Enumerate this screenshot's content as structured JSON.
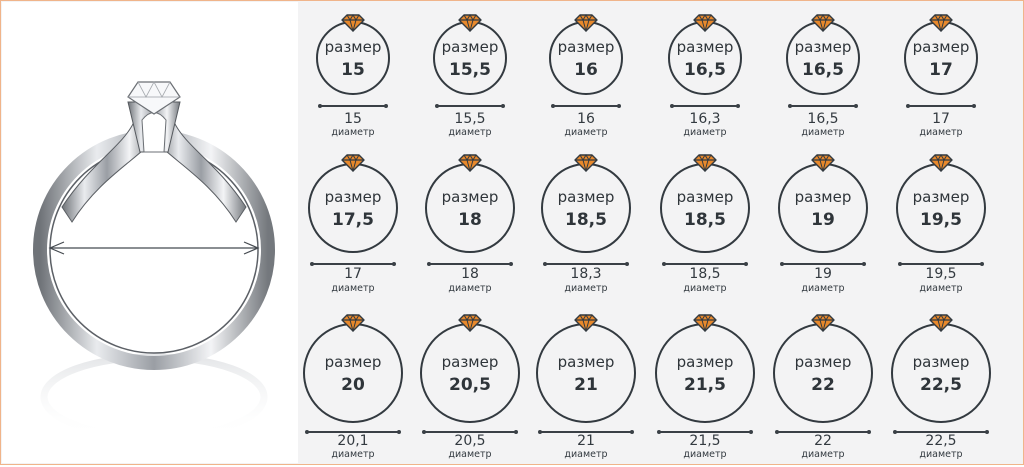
{
  "chart_title": "",
  "size_word": "размер",
  "diameter_word": "диаметр",
  "rings": [
    {
      "size": "15",
      "diameter": "15"
    },
    {
      "size": "15,5",
      "diameter": "15,5"
    },
    {
      "size": "16",
      "diameter": "16"
    },
    {
      "size": "16,5",
      "diameter": "16,3"
    },
    {
      "size": "16,5",
      "diameter": "16,5"
    },
    {
      "size": "17",
      "diameter": "17"
    },
    {
      "size": "17,5",
      "diameter": "17"
    },
    {
      "size": "18",
      "diameter": "18"
    },
    {
      "size": "18,5",
      "diameter": "18,3"
    },
    {
      "size": "18,5",
      "diameter": "18,5"
    },
    {
      "size": "19",
      "diameter": "19"
    },
    {
      "size": "19,5",
      "diameter": "19,5"
    },
    {
      "size": "20",
      "diameter": "20,1"
    },
    {
      "size": "20,5",
      "diameter": "20,5"
    },
    {
      "size": "21",
      "diameter": "21"
    },
    {
      "size": "21,5",
      "diameter": "21,5"
    },
    {
      "size": "22",
      "diameter": "22"
    },
    {
      "size": "22,5",
      "diameter": "22,5"
    }
  ],
  "colors": {
    "accent": "#e8892c",
    "ink": "#333a40",
    "background": "#f3f3f4",
    "border": "#f0b48a"
  },
  "icons": {
    "gem": "diamond-icon",
    "photo": "ring-photo"
  }
}
